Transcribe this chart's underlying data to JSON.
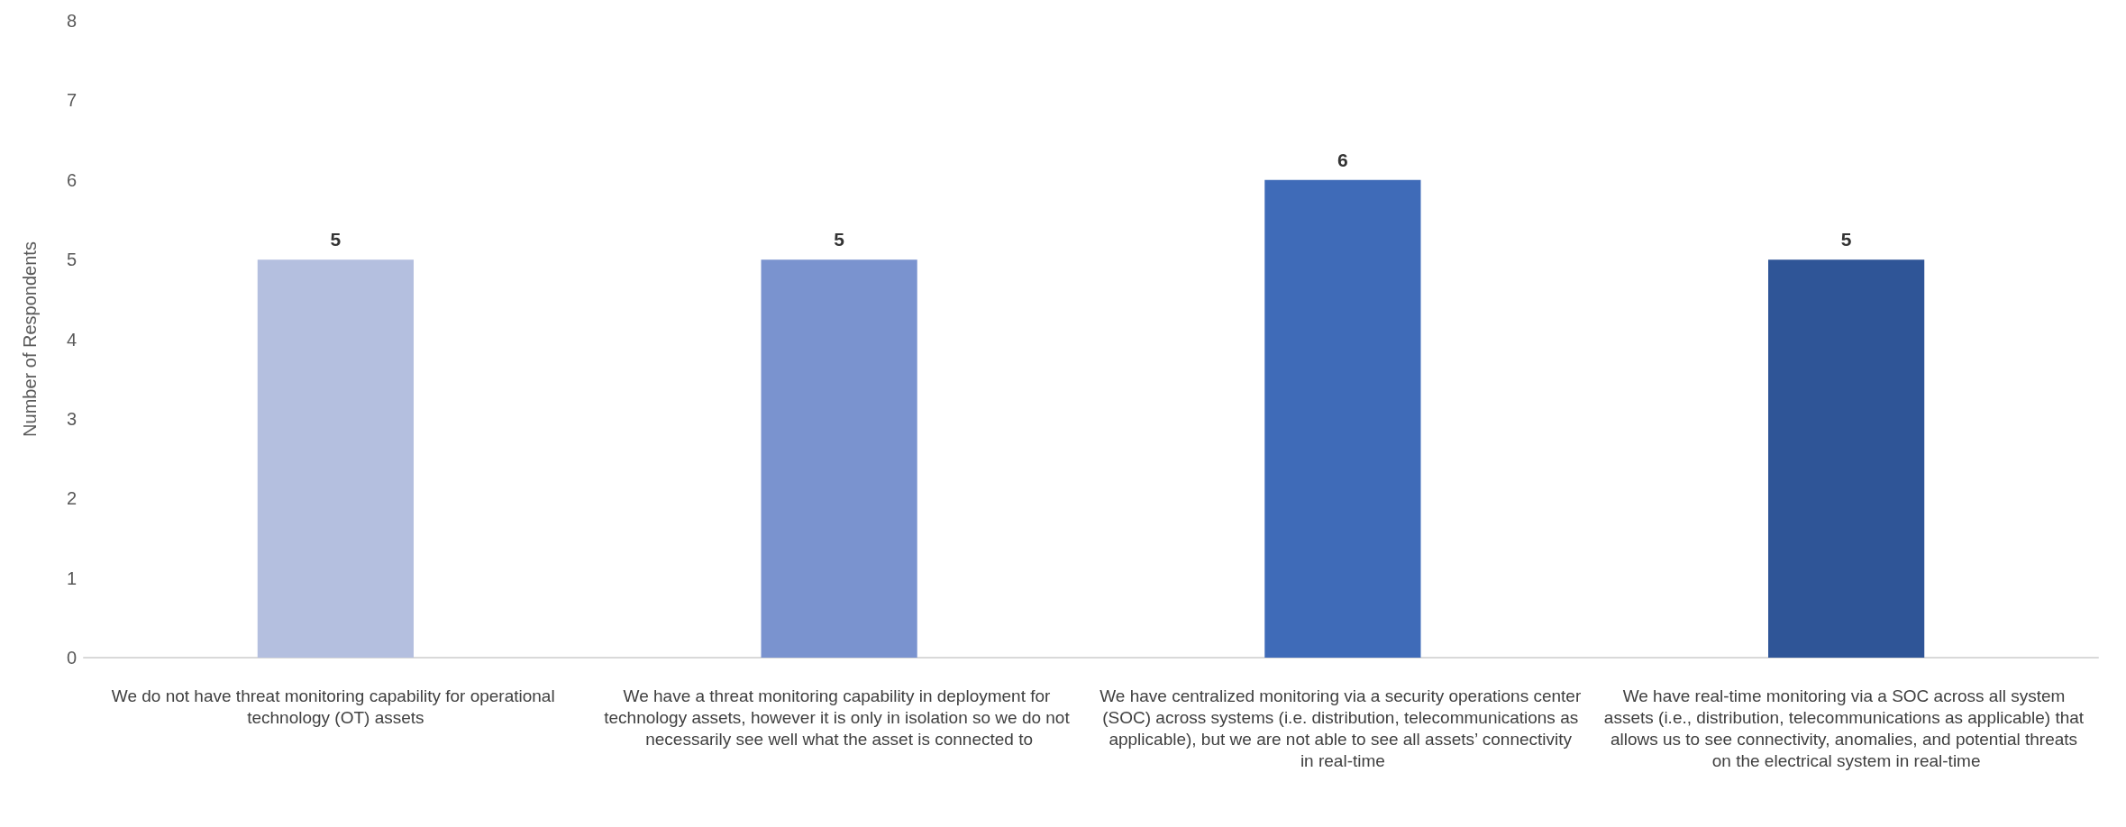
{
  "chart_data": {
    "type": "bar",
    "ylabel": "Number of Respondents",
    "categories": [
      "We do not have threat monitoring capability for operational technology (OT) assets",
      "We have a threat monitoring capability in deployment for technology assets, however it is only in isolation so we do not necessarily see well what the asset is connected to",
      "We have centralized monitoring via a security operations center (SOC) across systems (i.e. distribution, telecommunications as applicable), but we are not able to see all assets’ connectivity in real-time",
      "We have real-time monitoring via a SOC across all system assets (i.e., distribution, telecommunications as applicable) that allows us to see connectivity, anomalies, and potential threats on the electrical system in real-time"
    ],
    "values": [
      5,
      5,
      6,
      5
    ],
    "colors": [
      "#b4bfdf",
      "#7a93cf",
      "#3f6bb8",
      "#2f5597"
    ],
    "ylim": [
      0,
      8
    ],
    "yticks": [
      0,
      1,
      2,
      3,
      4,
      5,
      6,
      7,
      8
    ],
    "grid": false,
    "data_labels": true
  }
}
